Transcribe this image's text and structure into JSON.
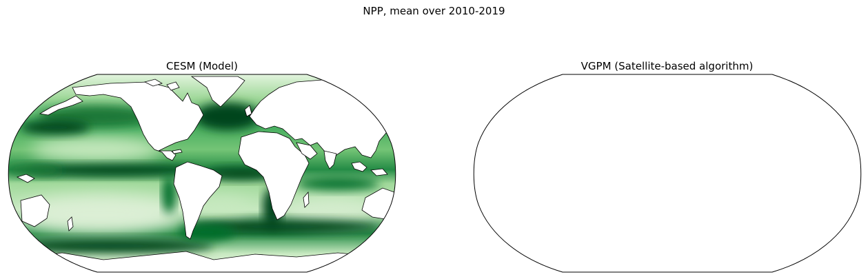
{
  "figure": {
    "suptitle": "NPP, mean over 2010-2019"
  },
  "panels": [
    {
      "title": "CESM (Model)",
      "has_data": true,
      "colormap": "Greens"
    },
    {
      "title": "VGPM (Satellite-based algorithm)",
      "has_data": false
    }
  ],
  "colors": {
    "land": "#ffffff",
    "coast": "#000000",
    "low": "#f2faee",
    "mid": "#7fc97f",
    "high": "#00441b"
  }
}
